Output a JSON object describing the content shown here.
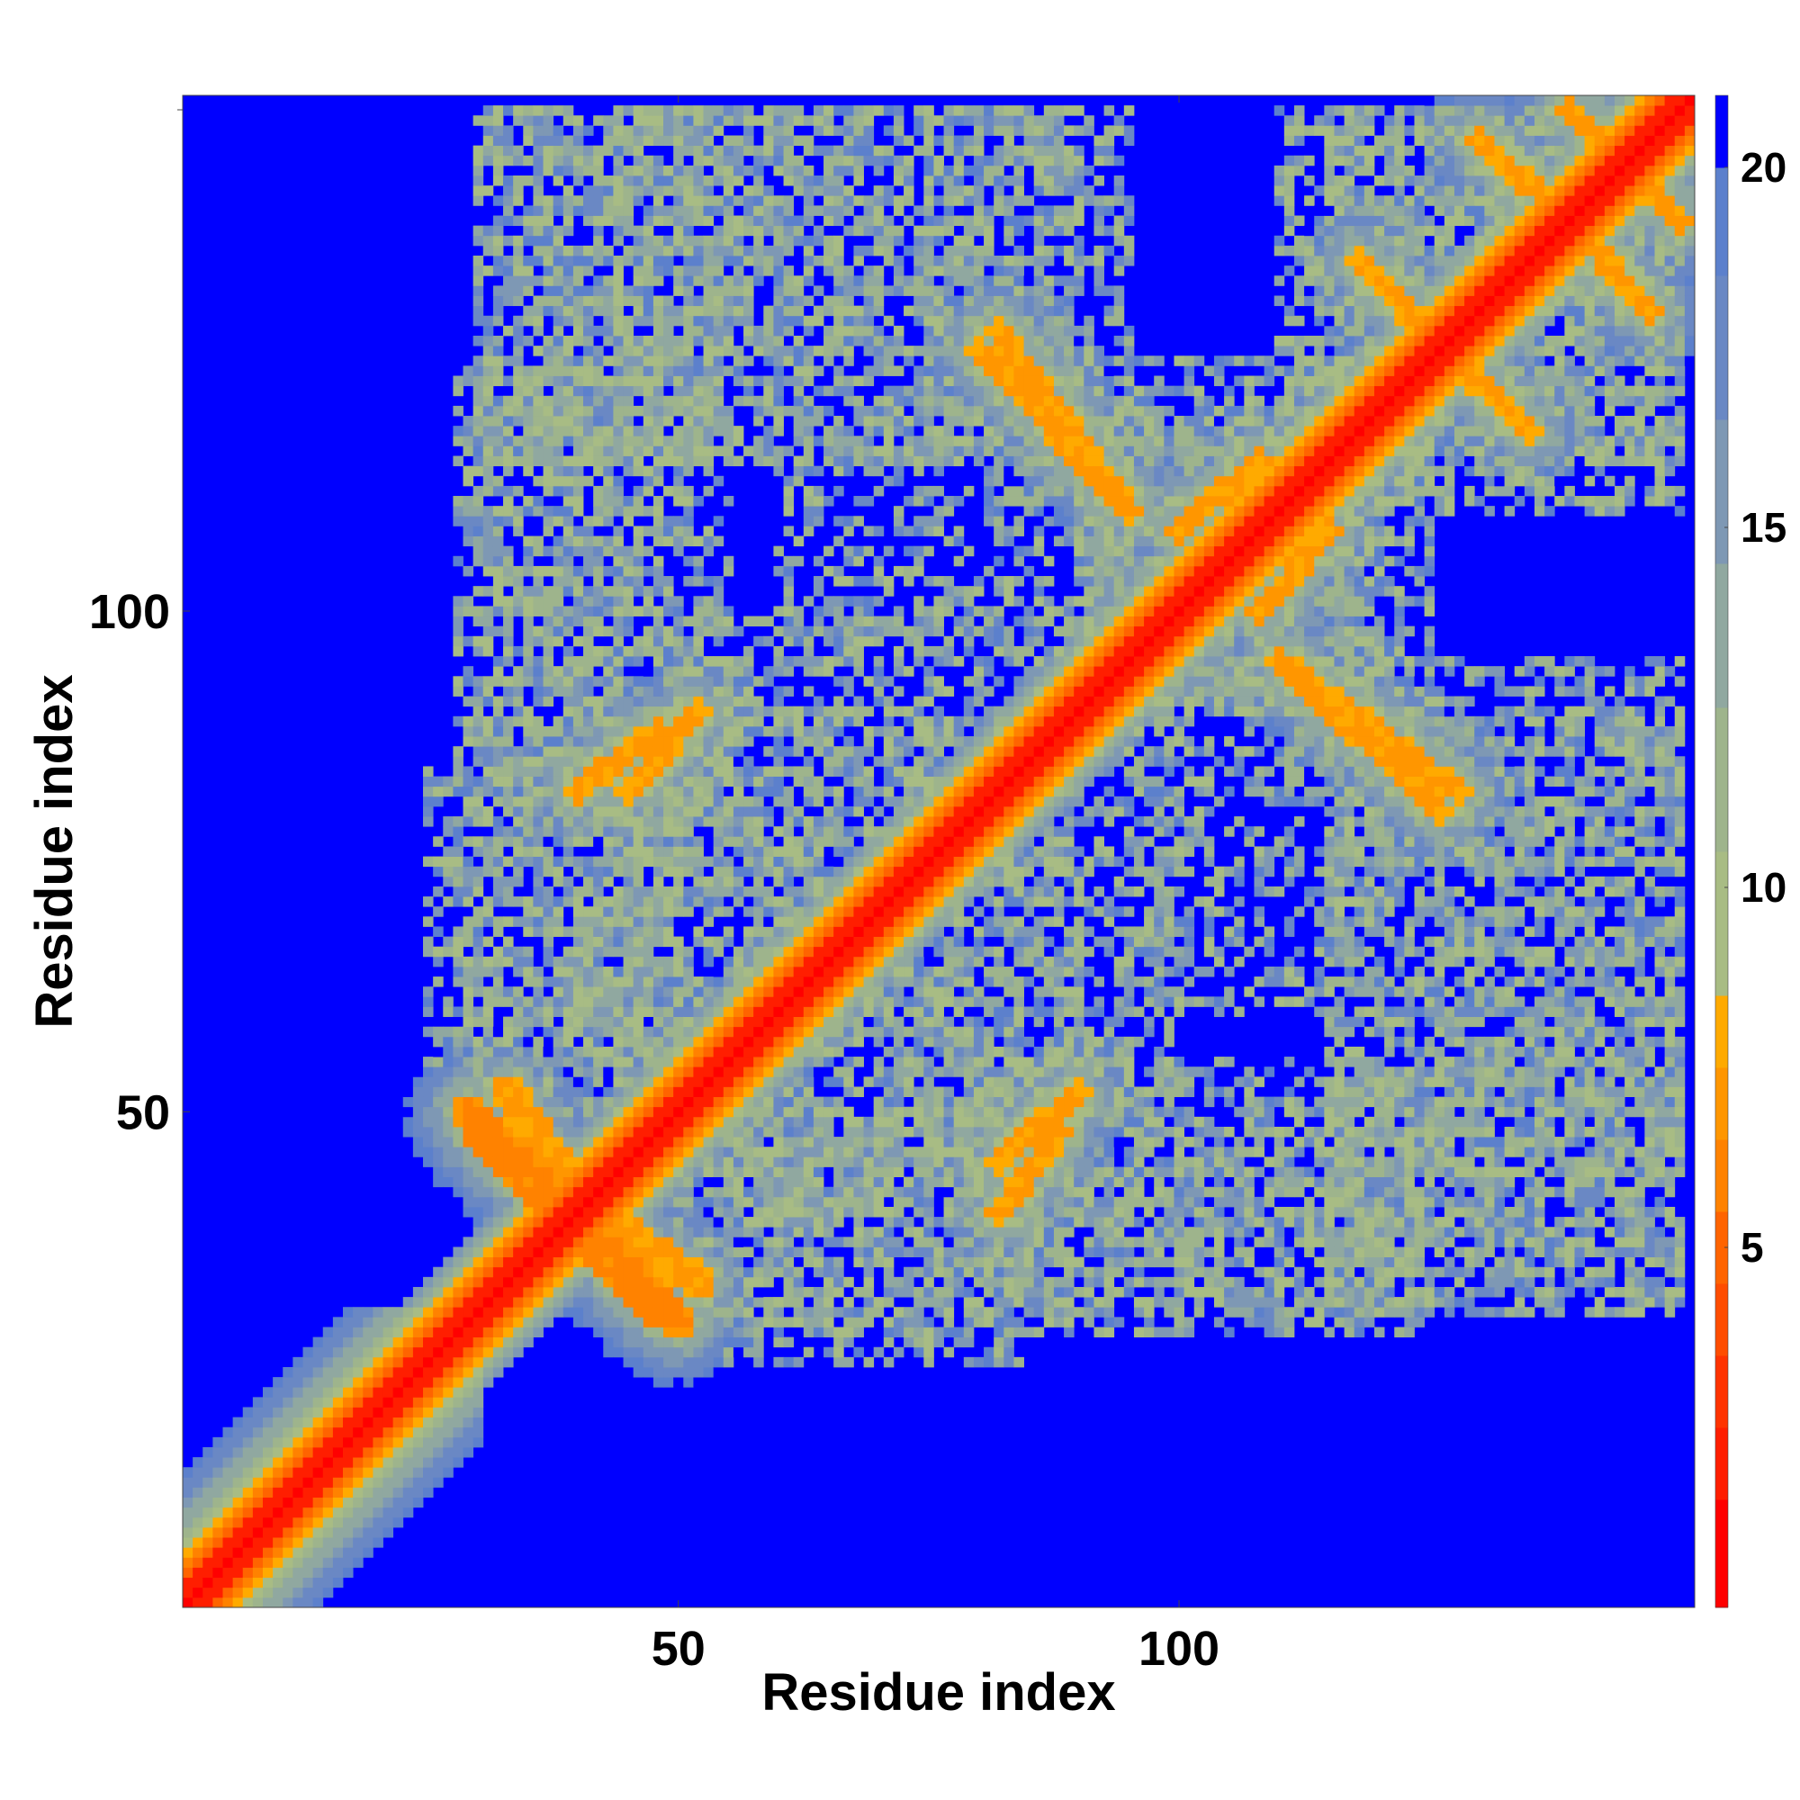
{
  "chart_data": {
    "type": "heatmap",
    "title": "",
    "xlabel": "Residue index",
    "ylabel": "Residue index",
    "n_residues": 151,
    "xlim": [
      1,
      151
    ],
    "ylim": [
      1,
      151
    ],
    "x_ticks": [
      50,
      100
    ],
    "y_ticks": [
      50,
      100
    ],
    "colorbar": {
      "range": [
        0,
        21
      ],
      "ticks": [
        5,
        10,
        15,
        20
      ],
      "colors": [
        {
          "max": 1.5,
          "color": "#ff0000"
        },
        {
          "max": 2.5,
          "color": "#ff1e00"
        },
        {
          "max": 3.5,
          "color": "#ff3300"
        },
        {
          "max": 4.5,
          "color": "#ff4d00"
        },
        {
          "max": 5.5,
          "color": "#ff6400"
        },
        {
          "max": 6.5,
          "color": "#ff8200"
        },
        {
          "max": 7.5,
          "color": "#ff9600"
        },
        {
          "max": 8.5,
          "color": "#ffaa00"
        },
        {
          "max": 10.5,
          "color": "#a8bc84"
        },
        {
          "max": 12.5,
          "color": "#9eb48c"
        },
        {
          "max": 14.5,
          "color": "#90a8a0"
        },
        {
          "max": 16.5,
          "color": "#7e98b4"
        },
        {
          "max": 18.5,
          "color": "#6a88c4"
        },
        {
          "max": 20.0,
          "color": "#5c80cc"
        },
        {
          "max": 999,
          "color": "#0000ff"
        }
      ]
    },
    "diagonal": {
      "value": 0
    },
    "background_value": 21,
    "contact_bands": [
      {
        "name": "n-terminal-helix",
        "x": [
          1,
          30
        ],
        "y": [
          1,
          30
        ],
        "orientation": "parallel",
        "core": 4.5,
        "width": 5
      },
      {
        "name": "antiparallel-40",
        "center": [
          40,
          40
        ],
        "from": [
          29,
          50
        ],
        "to": [
          48,
          30
        ],
        "orientation": "anti",
        "core": 6,
        "width": 3
      },
      {
        "name": "antiparallel-42",
        "center": [
          40,
          40
        ],
        "from": [
          33,
          52
        ],
        "to": [
          46,
          33
        ],
        "orientation": "anti",
        "core": 7,
        "width": 3
      },
      {
        "name": "band-45-88",
        "from": [
          40,
          82
        ],
        "to": [
          48,
          88
        ],
        "core": 7,
        "width": 2
      },
      {
        "name": "band-62-70",
        "from": [
          50,
          48
        ],
        "to": [
          70,
          70
        ],
        "orientation": "parallel",
        "core": 6,
        "width": 3
      },
      {
        "name": "band-85-55",
        "from": [
          82,
          45
        ],
        "to": [
          90,
          52
        ],
        "core": 7,
        "width": 2
      },
      {
        "name": "band-88-122",
        "from": [
          80,
          126
        ],
        "to": [
          95,
          110
        ],
        "core": 7,
        "width": 2
      },
      {
        "name": "band-105-112",
        "from": [
          100,
          108
        ],
        "to": [
          108,
          115
        ],
        "core": 7,
        "width": 2
      },
      {
        "name": "band-115-90",
        "from": [
          110,
          95
        ],
        "to": [
          128,
          82
        ],
        "core": 7,
        "width": 2
      },
      {
        "name": "band-125-140",
        "from": [
          118,
          135
        ],
        "to": [
          128,
          124
        ],
        "core": 7,
        "width": 2
      },
      {
        "name": "band-140-145",
        "from": [
          130,
          147
        ],
        "to": [
          140,
          138
        ],
        "core": 7,
        "width": 2
      },
      {
        "name": "band-148-148",
        "from": [
          139,
          150
        ],
        "to": [
          150,
          139
        ],
        "core": 7,
        "width": 2
      }
    ],
    "contact_regions": [
      {
        "x": [
          28,
          48
        ],
        "y": [
          100,
          125
        ],
        "density": 0.5
      },
      {
        "x": [
          32,
          56
        ],
        "y": [
          115,
          150
        ],
        "density": 0.55
      },
      {
        "x": [
          50,
          70
        ],
        "y": [
          125,
          150
        ],
        "density": 0.5
      },
      {
        "x": [
          75,
          95
        ],
        "y": [
          115,
          150
        ],
        "density": 0.55
      },
      {
        "x": [
          28,
          50
        ],
        "y": [
          50,
          100
        ],
        "density": 0.55
      },
      {
        "x": [
          50,
          90
        ],
        "y": [
          40,
          100
        ],
        "density": 0.5
      },
      {
        "x": [
          55,
          85
        ],
        "y": [
          25,
          50
        ],
        "density": 0.5
      },
      {
        "x": [
          80,
          125
        ],
        "y": [
          30,
          55
        ],
        "density": 0.5
      },
      {
        "x": [
          90,
          120
        ],
        "y": [
          90,
          125
        ],
        "density": 0.55
      },
      {
        "x": [
          115,
          150
        ],
        "y": [
          30,
          75
        ],
        "density": 0.55
      },
      {
        "x": [
          110,
          150
        ],
        "y": [
          115,
          150
        ],
        "density": 0.55
      },
      {
        "x": [
          118,
          150
        ],
        "y": [
          75,
          90
        ],
        "density": 0.5
      },
      {
        "x": [
          95,
          120
        ],
        "y": [
          60,
          95
        ],
        "density": 0.45
      }
    ]
  }
}
